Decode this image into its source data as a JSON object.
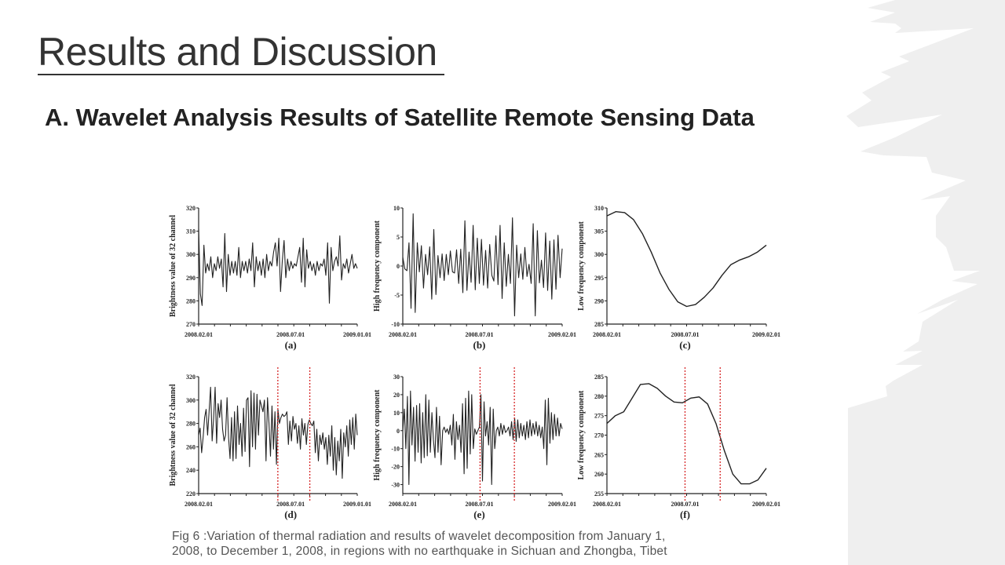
{
  "slide": {
    "title": "Results and Discussion",
    "subtitle": "A. Wavelet Analysis Results of Satellite Remote Sensing Data",
    "caption_line1": "Fig 6 :Variation of thermal radiation and results of wavelet decomposition from January 1,",
    "caption_line2": "2008, to December 1, 2008, in regions with no earthquake in Sichuan and Zhongba, Tibet",
    "colors": {
      "background": "#ffffff",
      "side_panel": "#efefef",
      "line": "#222222",
      "marker": "#d62728"
    }
  },
  "chart_data": [
    {
      "type": "line",
      "panel_label": "(a)",
      "ylabel": "Brightness value of 32 channel",
      "ylim": [
        270,
        320
      ],
      "yticks": [
        "320",
        "310",
        "300",
        "290",
        "280",
        "270"
      ],
      "xticks": [
        "2008.02.01",
        "2008.07.01",
        "2009.01.01"
      ],
      "x_range": [
        "2008.02.01",
        "2009.01.01"
      ],
      "grid": false,
      "values": [
        311,
        283,
        278,
        304,
        292,
        296,
        293,
        299,
        290,
        296,
        293,
        299,
        294,
        298,
        286,
        309,
        284,
        300,
        291,
        297,
        292,
        297,
        291,
        303,
        290,
        297,
        293,
        297,
        292,
        298,
        293,
        305,
        286,
        299,
        293,
        297,
        291,
        298,
        290,
        300,
        293,
        297,
        295,
        301,
        305,
        295,
        307,
        284,
        297,
        306,
        290,
        298,
        293,
        297,
        294,
        296,
        295,
        299,
        303,
        288,
        307,
        286,
        302,
        294,
        297,
        293,
        296,
        291,
        297,
        293,
        296,
        295,
        298,
        291,
        305,
        279,
        303,
        293,
        297,
        299,
        295,
        308,
        289,
        296,
        294,
        298,
        292,
        296,
        300,
        294,
        296,
        294
      ],
      "markers": []
    },
    {
      "type": "line",
      "panel_label": "(b)",
      "ylabel": "High frequency component",
      "ylim": [
        -10,
        10
      ],
      "yticks": [
        "10",
        "5",
        "0",
        "-5",
        "-10"
      ],
      "xticks": [
        "2008.02.01",
        "2008.07.01",
        "2009.02.01"
      ],
      "x_range": [
        "2008.02.01",
        "2009.02.01"
      ],
      "grid": false,
      "values": [
        1.5,
        -0.5,
        -0.8,
        4,
        -7.3,
        9,
        -8,
        4,
        -1,
        3.5,
        -3.8,
        2,
        -1.5,
        3.3,
        -5.7,
        6.3,
        -4.9,
        1.8,
        -2,
        2.1,
        -2.5,
        2,
        -1.5,
        2.6,
        -1,
        -1.2,
        2.8,
        -3,
        2.9,
        -4.6,
        7.8,
        -4.2,
        2.4,
        -2.8,
        7,
        -4.1,
        4.8,
        -3,
        4.6,
        -3.3,
        2.7,
        -3.8,
        3.7,
        -1.6,
        -2.6,
        5.2,
        -3.2,
        7,
        -5.6,
        4,
        -3.5,
        2,
        -3,
        8.3,
        -8.6,
        3.6,
        -2,
        2.1,
        -2.3,
        3.2,
        -1.8,
        0.3,
        -3,
        7.3,
        -8.6,
        6.1,
        -2.9,
        1,
        -3.7,
        5.7,
        -4.2,
        4.3,
        -5.7,
        4.5,
        -4,
        5.3,
        -2,
        3
      ],
      "markers": []
    },
    {
      "type": "line",
      "panel_label": "(c)",
      "ylabel": "Low frequency component",
      "ylim": [
        285,
        310
      ],
      "yticks": [
        "310",
        "305",
        "300",
        "295",
        "290",
        "285"
      ],
      "xticks": [
        "2008.02.01",
        "2008.07.01",
        "2009.02.01"
      ],
      "x_range": [
        "2008.02.01",
        "2009.02.01"
      ],
      "grid": false,
      "values": [
        308.3,
        309.2,
        309.0,
        307.5,
        304.5,
        300.5,
        296,
        292.5,
        289.8,
        288.8,
        289.2,
        290.8,
        292.8,
        295.5,
        297.8,
        298.8,
        299.5,
        300.5,
        302
      ],
      "markers": []
    },
    {
      "type": "line",
      "panel_label": "(d)",
      "ylabel": "Brightness value of 32 channel",
      "ylim": [
        220,
        320
      ],
      "yticks": [
        "320",
        "300",
        "280",
        "260",
        "240",
        "220"
      ],
      "xticks": [
        "2008.02.01",
        "2008.07.01",
        "2009.01.01"
      ],
      "x_range": [
        "2008.02.01",
        "2009.01.01"
      ],
      "grid": false,
      "values": [
        270,
        276,
        255,
        268,
        285,
        292,
        270,
        290,
        311,
        265,
        285,
        311,
        263,
        297,
        285,
        300,
        275,
        265,
        270,
        302,
        268,
        250,
        285,
        248,
        290,
        250,
        295,
        262,
        280,
        252,
        293,
        256,
        300,
        302,
        243,
        308,
        260,
        306,
        258,
        305,
        270,
        300,
        295,
        290,
        300,
        248,
        302,
        280,
        252,
        295,
        258,
        290,
        245,
        292,
        280,
        285,
        288,
        286,
        287,
        290,
        262,
        282,
        265,
        286,
        275,
        280,
        263,
        278,
        258,
        284,
        270,
        280,
        262,
        279,
        283,
        280,
        278,
        282,
        255,
        275,
        248,
        270,
        262,
        272,
        258,
        268,
        245,
        270,
        252,
        278,
        240,
        268,
        236,
        265,
        248,
        275,
        233,
        272,
        260,
        278,
        252,
        283,
        262,
        285,
        258,
        288,
        270
      ],
      "markers": [
        "2008.06.10",
        "2008.08.23"
      ]
    },
    {
      "type": "line",
      "panel_label": "(e)",
      "ylabel": "High frequency component",
      "ylim": [
        -35,
        30
      ],
      "yticks": [
        "30",
        "20",
        "10",
        "0",
        "-10",
        "-20",
        "-30"
      ],
      "xticks": [
        "2008.02.01",
        "2008.07.01",
        "2009.02.01"
      ],
      "x_range": [
        "2008.02.01",
        "2009.02.01"
      ],
      "grid": false,
      "values": [
        0,
        12,
        -10,
        19,
        -30,
        22,
        -8,
        13,
        -17,
        14,
        -12,
        15,
        -18,
        10,
        -15,
        20,
        -14,
        17,
        -12,
        10,
        -5,
        -15,
        13,
        -12,
        8,
        -19,
        0,
        2,
        -1,
        1,
        -2,
        3,
        -8,
        9,
        -16,
        5,
        -5,
        3,
        -12,
        15,
        -24,
        18,
        -21,
        22,
        -13,
        20,
        -10,
        1,
        -2,
        0,
        2,
        20,
        -28,
        16,
        -3,
        5,
        -8,
        13,
        -30,
        12,
        -10,
        0,
        2,
        -3,
        4,
        -2,
        3,
        -1,
        0,
        2,
        -3,
        5,
        -5,
        7,
        -6,
        6,
        -4,
        4,
        -3,
        3,
        -5,
        5,
        -4,
        6,
        -3,
        4,
        -2,
        5,
        -3,
        3,
        -4,
        2,
        -10,
        17,
        -19,
        18,
        -7,
        10,
        -5,
        9,
        -3,
        7,
        -3,
        4,
        1
      ],
      "markers": [
        "2008.07.03",
        "2008.09.30"
      ]
    },
    {
      "type": "line",
      "panel_label": "(f)",
      "ylabel": "Low frequency component",
      "ylim": [
        255,
        285
      ],
      "yticks": [
        "285",
        "280",
        "275",
        "270",
        "265",
        "260",
        "255"
      ],
      "xticks": [
        "2008.02.01",
        "2008.07.01",
        "2009.02.01"
      ],
      "x_range": [
        "2008.02.01",
        "2009.02.01"
      ],
      "grid": false,
      "values": [
        273,
        275,
        276,
        279.5,
        283,
        283.2,
        282,
        280,
        278.5,
        278.3,
        279.5,
        279.8,
        278,
        273,
        266,
        260,
        257.5,
        257.5,
        258.5,
        261.5
      ],
      "markers": [
        "2008.07.01",
        "2008.10.02"
      ]
    }
  ]
}
